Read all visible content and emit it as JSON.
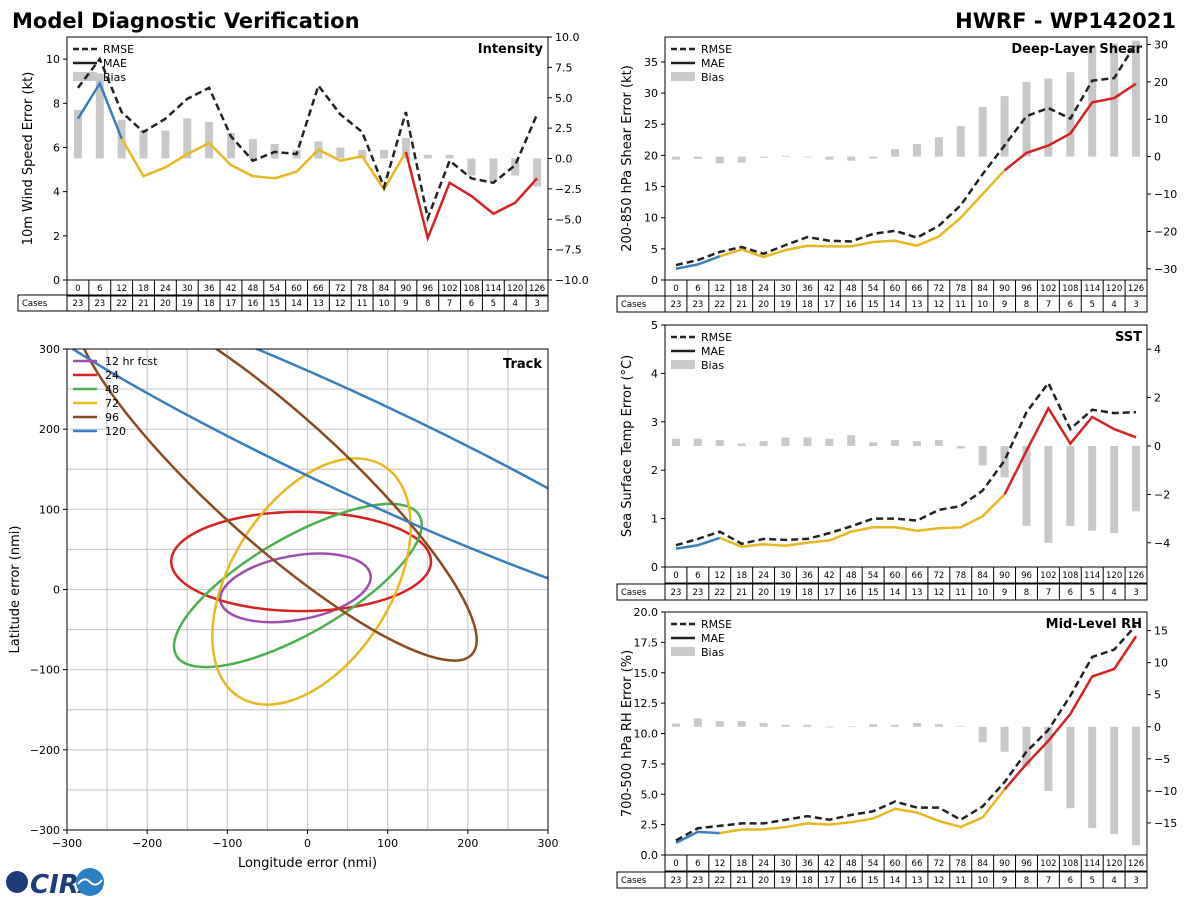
{
  "header": {
    "title": "Model Diagnostic Verification",
    "storm": "HWRF - WP142021"
  },
  "colors": {
    "rmse": "#222222",
    "mae_early": "#3a7ebf",
    "mae_mid": "#e8b820",
    "mae_late": "#d62222",
    "bias": "#c8c8c8",
    "fcst12": "#9c4fa8",
    "fcst24": "#d62222",
    "fcst48": "#4caf50",
    "fcst72": "#e8b820",
    "fcst96": "#8b4a22",
    "fcst120": "#3a7ebf",
    "grid": "#cccccc"
  },
  "legend": {
    "rmse": "RMSE",
    "mae": "MAE",
    "bias": "Bias"
  },
  "cases_label": "Cases",
  "logo_text": "CIRA",
  "chart_data": [
    {
      "id": "intensity",
      "type": "line",
      "title": "Intensity",
      "ylabel": "10m Wind Speed Error (kt)",
      "ylim": [
        0,
        11
      ],
      "yticks": [
        "0",
        "2",
        "4",
        "6",
        "8",
        "10"
      ],
      "y2lim": [
        -10,
        10
      ],
      "y2ticks": [
        "−10.0",
        "−7.5",
        "−5.0",
        "−2.5",
        "0.0",
        "2.5",
        "5.0",
        "7.5",
        "10.0"
      ],
      "legend_position": "top-left",
      "x": [
        0,
        6,
        12,
        18,
        24,
        30,
        36,
        42,
        48,
        54,
        60,
        66,
        72,
        78,
        84,
        90,
        96,
        102,
        108,
        114,
        120,
        126
      ],
      "cases": [
        23,
        23,
        22,
        21,
        20,
        19,
        18,
        17,
        16,
        15,
        14,
        13,
        12,
        11,
        10,
        9,
        8,
        7,
        6,
        5,
        4,
        3
      ],
      "rmse": [
        8.7,
        10.0,
        7.6,
        6.7,
        7.3,
        8.2,
        8.7,
        6.5,
        5.4,
        5.8,
        5.7,
        8.8,
        7.5,
        6.7,
        4.2,
        7.6,
        2.8,
        5.4,
        4.6,
        4.4,
        5.2,
        7.5
      ],
      "mae": [
        7.3,
        8.9,
        6.4,
        4.7,
        5.1,
        5.7,
        6.2,
        5.2,
        4.7,
        4.6,
        4.9,
        5.9,
        5.4,
        5.6,
        4.1,
        5.8,
        1.9,
        4.4,
        3.8,
        3.0,
        3.5,
        4.6
      ],
      "bias": [
        4.0,
        7.0,
        3.2,
        2.3,
        2.3,
        3.3,
        3.0,
        2.1,
        1.6,
        1.2,
        0.7,
        1.4,
        0.9,
        0.7,
        0.7,
        1.7,
        0.3,
        0.3,
        -1.4,
        -1.9,
        -1.4,
        -2.3
      ]
    },
    {
      "id": "shear",
      "type": "line",
      "title": "Deep-Layer Shear",
      "ylabel": "200-850 hPa Shear Error (kt)",
      "ylim": [
        0,
        39
      ],
      "yticks": [
        "0",
        "5",
        "10",
        "15",
        "20",
        "25",
        "30",
        "35"
      ],
      "y2lim": [
        -33,
        32
      ],
      "y2ticks": [
        "−30",
        "−20",
        "−10",
        "0",
        "10",
        "20",
        "30"
      ],
      "legend_position": "top-left",
      "x": [
        0,
        6,
        12,
        18,
        24,
        30,
        36,
        42,
        48,
        54,
        60,
        66,
        72,
        78,
        84,
        90,
        96,
        102,
        108,
        114,
        120,
        126
      ],
      "cases": [
        23,
        23,
        22,
        21,
        20,
        19,
        18,
        17,
        16,
        15,
        14,
        13,
        12,
        11,
        10,
        9,
        8,
        7,
        6,
        5,
        4,
        3
      ],
      "rmse": [
        2.4,
        3.2,
        4.5,
        5.3,
        4.2,
        5.6,
        6.9,
        6.3,
        6.2,
        7.4,
        7.9,
        6.8,
        8.7,
        12.0,
        17.0,
        21.6,
        26.3,
        27.6,
        25.9,
        32.0,
        32.4,
        38.0
      ],
      "mae": [
        1.8,
        2.5,
        3.8,
        4.9,
        3.7,
        4.8,
        5.5,
        5.4,
        5.4,
        6.1,
        6.3,
        5.5,
        7.0,
        10.0,
        13.8,
        17.6,
        20.4,
        21.6,
        23.5,
        28.5,
        29.2,
        31.5
      ],
      "bias": [
        -0.8,
        -0.6,
        -1.8,
        -1.6,
        -0.3,
        0.2,
        -0.2,
        -0.8,
        -1.1,
        -0.5,
        2.0,
        3.4,
        5.2,
        8.2,
        13.3,
        16.2,
        20.0,
        20.9,
        22.6,
        29.4,
        30.2,
        31.0
      ]
    },
    {
      "id": "sst",
      "type": "line",
      "title": "SST",
      "ylabel": "Sea Surface Temp Error (°C)",
      "ylim": [
        0,
        5
      ],
      "yticks": [
        "0",
        "1",
        "2",
        "3",
        "4",
        "5"
      ],
      "y2lim": [
        -5,
        5
      ],
      "y2ticks": [
        "−4",
        "−2",
        "0",
        "2",
        "4"
      ],
      "legend_position": "top-left",
      "x": [
        0,
        6,
        12,
        18,
        24,
        30,
        36,
        42,
        48,
        54,
        60,
        66,
        72,
        78,
        84,
        90,
        96,
        102,
        108,
        114,
        120,
        126
      ],
      "cases": [
        23,
        23,
        22,
        21,
        20,
        19,
        18,
        17,
        16,
        15,
        14,
        13,
        12,
        11,
        10,
        9,
        8,
        7,
        6,
        5,
        4,
        3
      ],
      "rmse": [
        0.45,
        0.58,
        0.73,
        0.48,
        0.58,
        0.56,
        0.58,
        0.7,
        0.84,
        1.0,
        1.0,
        0.96,
        1.18,
        1.26,
        1.58,
        2.2,
        3.2,
        3.8,
        2.85,
        3.25,
        3.18,
        3.2
      ],
      "mae": [
        0.38,
        0.45,
        0.6,
        0.42,
        0.47,
        0.44,
        0.5,
        0.55,
        0.73,
        0.82,
        0.82,
        0.75,
        0.8,
        0.82,
        1.05,
        1.5,
        2.4,
        3.28,
        2.55,
        3.1,
        2.85,
        2.68
      ],
      "bias": [
        0.3,
        0.3,
        0.25,
        0.1,
        0.2,
        0.35,
        0.35,
        0.3,
        0.45,
        0.15,
        0.25,
        0.2,
        0.25,
        -0.1,
        -0.8,
        -1.3,
        -3.3,
        -4.0,
        -3.3,
        -3.5,
        -3.6,
        -2.7
      ]
    },
    {
      "id": "rh",
      "type": "line",
      "title": "Mid-Level RH",
      "ylabel": "700-500 hPa RH Error (%)",
      "ylim": [
        0,
        20
      ],
      "yticks": [
        "0.0",
        "2.5",
        "5.0",
        "7.5",
        "10.0",
        "12.5",
        "15.0",
        "17.5",
        "20.0"
      ],
      "y2lim": [
        -20,
        17.9
      ],
      "y2ticks": [
        "−15",
        "−10",
        "−5",
        "0",
        "5",
        "10",
        "15"
      ],
      "legend_position": "top-left",
      "x": [
        0,
        6,
        12,
        18,
        24,
        30,
        36,
        42,
        48,
        54,
        60,
        66,
        72,
        78,
        84,
        90,
        96,
        102,
        108,
        114,
        120,
        126
      ],
      "cases": [
        23,
        23,
        22,
        21,
        20,
        19,
        18,
        17,
        16,
        15,
        14,
        13,
        12,
        11,
        10,
        9,
        8,
        7,
        6,
        5,
        4,
        3
      ],
      "rmse": [
        1.2,
        2.2,
        2.4,
        2.6,
        2.6,
        2.9,
        3.2,
        2.9,
        3.3,
        3.6,
        4.4,
        3.9,
        3.9,
        2.9,
        4.0,
        6.0,
        8.5,
        10.3,
        13.1,
        16.3,
        16.9,
        18.9
      ],
      "mae": [
        1.0,
        1.9,
        1.8,
        2.1,
        2.1,
        2.3,
        2.6,
        2.5,
        2.7,
        3.0,
        3.8,
        3.5,
        2.8,
        2.3,
        3.1,
        5.4,
        7.5,
        9.4,
        11.6,
        14.7,
        15.3,
        18.0
      ],
      "bias": [
        0.5,
        1.3,
        0.9,
        0.9,
        0.6,
        0.3,
        0.3,
        -0.1,
        0.1,
        0.4,
        0.3,
        0.6,
        0.4,
        0.1,
        -2.4,
        -3.9,
        -6.2,
        -10.0,
        -12.7,
        -15.8,
        -16.7,
        -18.5
      ]
    },
    {
      "id": "track",
      "type": "scatter",
      "title": "Track",
      "xlabel": "Longitude error (nmi)",
      "ylabel": "Latitude error (nmi)",
      "xlim": [
        -300,
        300
      ],
      "ylim": [
        -300,
        300
      ],
      "xticks": [
        "−300",
        "−200",
        "−100",
        "0",
        "100",
        "200",
        "300"
      ],
      "yticks": [
        "−300",
        "−200",
        "−100",
        "0",
        "100",
        "200",
        "300"
      ],
      "grid": true,
      "legend_position": "top-left",
      "ellipses": [
        {
          "label": "12 hr fcst",
          "color": "#9c4fa8",
          "cx": -15,
          "cy": 2,
          "a": 95,
          "b": 40,
          "angle": 10
        },
        {
          "label": "24",
          "color": "#d62222",
          "cx": -8,
          "cy": 35,
          "a": 162,
          "b": 62,
          "angle": 0
        },
        {
          "label": "48",
          "color": "#4caf50",
          "cx": -12,
          "cy": 5,
          "a": 175,
          "b": 60,
          "angle": 30
        },
        {
          "label": "72",
          "color": "#e8b820",
          "cx": 5,
          "cy": 10,
          "a": 170,
          "b": 100,
          "angle": 58
        },
        {
          "label": "96",
          "color": "#8b4a22",
          "cx": -40,
          "cy": 140,
          "a": 330,
          "b": 80,
          "angle": -42
        },
        {
          "label": "120",
          "color": "#3a7ebf",
          "cx": 60,
          "cy": 180,
          "a": 500,
          "b": 60,
          "angle": -25
        }
      ]
    }
  ]
}
